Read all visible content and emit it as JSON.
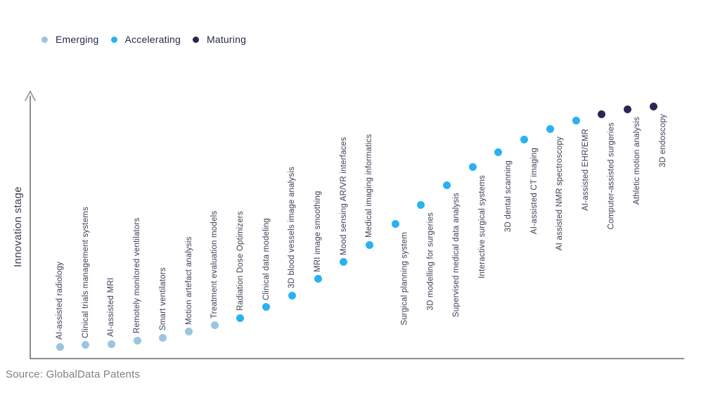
{
  "legend": {
    "items": [
      {
        "label": "Emerging",
        "stage": "emerging"
      },
      {
        "label": "Accelerating",
        "stage": "accelerating"
      },
      {
        "label": "Maturing",
        "stage": "maturing"
      }
    ]
  },
  "axis": {
    "y_label": "Innovation stage"
  },
  "source": {
    "text": "Source: GlobalData Patents"
  },
  "colors": {
    "emerging": "#9CC4DE",
    "accelerating": "#29B2F0",
    "maturing": "#2E2455",
    "label_text": "#3C4055",
    "legend_text": "#252A45",
    "axis": "#8E8E8E",
    "source_text": "#808080"
  },
  "chart_data": {
    "type": "scatter",
    "title": "",
    "xlabel": "",
    "ylabel": "Innovation stage",
    "x_axis": {
      "kind": "ordinal",
      "note": "technologies ordered left-to-right by increasing innovation stage"
    },
    "y_axis": {
      "kind": "qualitative",
      "range": [
        0,
        100
      ],
      "ticks": "none"
    },
    "grid": false,
    "legend_position": "top-left",
    "series_field": "stage",
    "points": [
      {
        "label": "AI-assisted radiology",
        "stage": "emerging",
        "value": 4.7
      },
      {
        "label": "Clinical trials management systems",
        "stage": "emerging",
        "value": 5.3
      },
      {
        "label": "AI-assisted MRI",
        "stage": "emerging",
        "value": 5.8
      },
      {
        "label": "Remotely monitored ventilators",
        "stage": "emerging",
        "value": 7.2
      },
      {
        "label": "Smart ventilators",
        "stage": "emerging",
        "value": 8.3
      },
      {
        "label": "Motion artefact analysis",
        "stage": "emerging",
        "value": 10.6
      },
      {
        "label": "Treatment evaluation models",
        "stage": "emerging",
        "value": 13.1
      },
      {
        "label": "Radiation Dose Optimizers",
        "stage": "accelerating",
        "value": 16.1
      },
      {
        "label": "Clinical data modeling",
        "stage": "accelerating",
        "value": 20.3
      },
      {
        "label": "3D blood vessels image analysis",
        "stage": "accelerating",
        "value": 25.0
      },
      {
        "label": "MRI image smoothing",
        "stage": "accelerating",
        "value": 31.4
      },
      {
        "label": "Mood sensing AR/VR interfaces",
        "stage": "accelerating",
        "value": 38.1
      },
      {
        "label": "Medical imaging informatics",
        "stage": "accelerating",
        "value": 45.0
      },
      {
        "label": "Surgical planning system",
        "stage": "accelerating",
        "value": 53.1
      },
      {
        "label": "3D modelling for surgeries",
        "stage": "accelerating",
        "value": 60.8
      },
      {
        "label": "Supervised medical data analysis",
        "stage": "accelerating",
        "value": 68.6
      },
      {
        "label": "Interactive surgical systems",
        "stage": "accelerating",
        "value": 75.6
      },
      {
        "label": "3D dental scanning",
        "stage": "accelerating",
        "value": 81.4
      },
      {
        "label": "AI-assisted CT imaging",
        "stage": "accelerating",
        "value": 86.4
      },
      {
        "label": "AI assisted NMR spectroscopy",
        "stage": "accelerating",
        "value": 90.8
      },
      {
        "label": "AI-assisted EHR/EMR",
        "stage": "accelerating",
        "value": 93.9
      },
      {
        "label": "Computer-assisted surgeries",
        "stage": "maturing",
        "value": 96.4
      },
      {
        "label": "Athletic motion analysis",
        "stage": "maturing",
        "value": 98.6
      },
      {
        "label": "3D endoscopy",
        "stage": "maturing",
        "value": 99.7
      }
    ]
  }
}
